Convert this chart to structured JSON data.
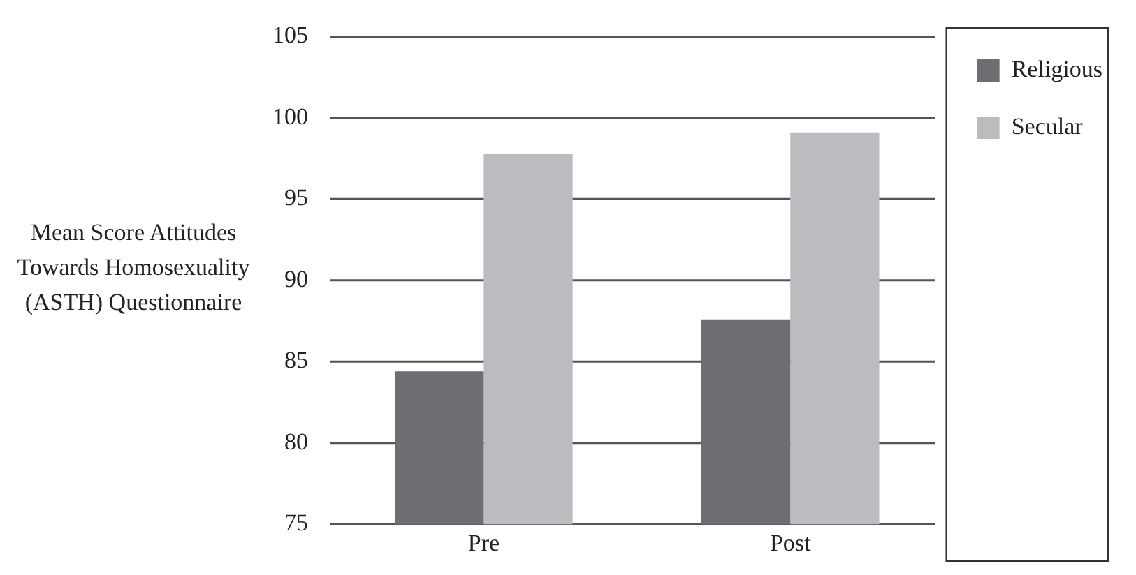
{
  "chart_data": {
    "type": "bar",
    "ylabel": "Mean Score Attitudes Towards Homosexuality (ASTH) Questionnaire",
    "categories": [
      "Pre",
      "Post"
    ],
    "series": [
      {
        "name": "Religious",
        "color": "#6d6e72",
        "values": [
          84.4,
          87.6
        ]
      },
      {
        "name": "Secular",
        "color": "#bbbcc0",
        "values": [
          97.8,
          99.1
        ]
      }
    ],
    "ylim": [
      75,
      105
    ],
    "yticks": [
      75,
      80,
      85,
      90,
      95,
      100,
      105
    ],
    "grid": "y",
    "legend": "top right"
  }
}
